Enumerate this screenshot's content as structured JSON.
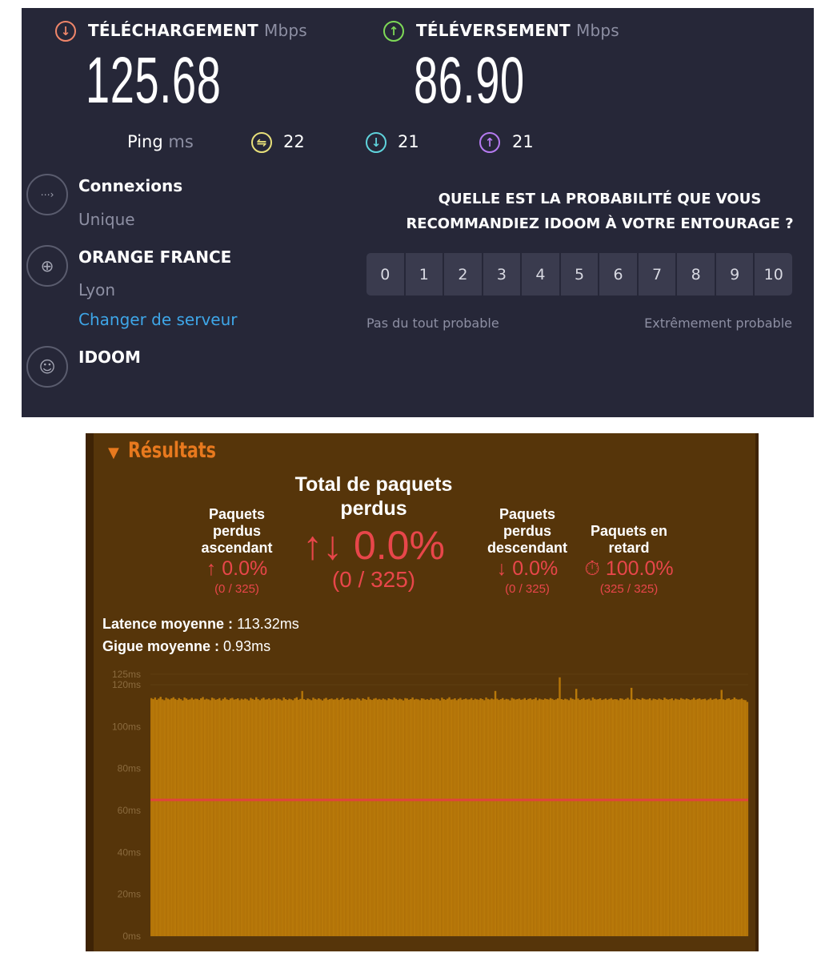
{
  "speedtest": {
    "download": {
      "label": "TÉLÉCHARGEMENT",
      "unit": "Mbps",
      "value": "125.68",
      "icon": "download-arrow-icon",
      "color": "#f0866a"
    },
    "upload": {
      "label": "TÉLÉVERSEMENT",
      "unit": "Mbps",
      "value": "86.90",
      "icon": "upload-arrow-icon",
      "color": "#7ed957"
    },
    "ping": {
      "label": "Ping",
      "unit": "ms",
      "idle": "22",
      "down": "21",
      "up": "21",
      "colors": {
        "idle": "#e8e07a",
        "down": "#5fd3dc",
        "up": "#b57af0"
      }
    },
    "connections": {
      "title": "Connexions",
      "value": "Unique"
    },
    "server": {
      "title": "ORANGE FRANCE",
      "location": "Lyon",
      "change_link": "Changer de serveur"
    },
    "provider": {
      "title": "IDOOM"
    },
    "survey": {
      "line1": "QUELLE EST LA PROBABILITÉ QUE VOUS",
      "line2": "RECOMMANDIEZ IDOOM À VOTRE ENTOURAGE ?",
      "options": [
        "0",
        "1",
        "2",
        "3",
        "4",
        "5",
        "6",
        "7",
        "8",
        "9",
        "10"
      ],
      "low_label": "Pas du tout probable",
      "high_label": "Extrêmement probable"
    }
  },
  "results": {
    "title": "Résultats",
    "upstream": {
      "label_lines": [
        "Paquets",
        "perdus",
        "ascendant"
      ],
      "value": "↑ 0.0%",
      "count": "(0 / 325)"
    },
    "total": {
      "label_lines": [
        "Total de paquets",
        "perdus"
      ],
      "value": "↑↓ 0.0%",
      "count": "(0 / 325)"
    },
    "downstream": {
      "label_lines": [
        "Paquets",
        "perdus",
        "descendant"
      ],
      "value": "↓ 0.0%",
      "count": "(0 / 325)"
    },
    "late": {
      "label_lines": [
        "Paquets en",
        "retard"
      ],
      "value": "⏱ 100.0%",
      "count": "(325 / 325)"
    },
    "avg_latency_label": "Latence moyenne :",
    "avg_latency": "113.32ms",
    "avg_jitter_label": "Gigue moyenne :",
    "avg_jitter": "0.93ms"
  },
  "chart_data": {
    "type": "bar",
    "ylim": [
      0,
      125
    ],
    "unit": "ms",
    "yticks": [
      "0ms",
      "20ms",
      "40ms",
      "60ms",
      "80ms",
      "100ms",
      "120ms",
      "125ms"
    ],
    "ytick_values": [
      0,
      20,
      40,
      60,
      80,
      100,
      120,
      125
    ],
    "threshold": 65,
    "bar_color": "#b8790a",
    "threshold_color": "#e0443c",
    "values": [
      113.6,
      113.1,
      113.9,
      112.8,
      113.4,
      114.2,
      113.0,
      112.6,
      113.8,
      113.3,
      112.9,
      113.5,
      114.0,
      113.2,
      112.7,
      113.6,
      113.1,
      112.5,
      113.9,
      113.4,
      112.8,
      113.0,
      113.7,
      112.9,
      113.3,
      113.2,
      112.7,
      113.5,
      114.1,
      112.9,
      113.3,
      113.0,
      112.6,
      113.8,
      113.4,
      112.8,
      113.1,
      113.6,
      112.5,
      113.2,
      113.9,
      113.0,
      112.7,
      113.4,
      113.7,
      112.9,
      113.1,
      113.5,
      112.6,
      113.3,
      112.9,
      113.4,
      113.0,
      112.5,
      113.7,
      113.2,
      112.8,
      114.0,
      113.1,
      112.6,
      113.3,
      113.8,
      112.9,
      113.0,
      113.5,
      112.7,
      113.2,
      113.6,
      112.8,
      113.4,
      113.0,
      112.5,
      113.9,
      113.1,
      112.7,
      113.3,
      113.0,
      112.6,
      113.5,
      114.0,
      112.8,
      113.2,
      117.0,
      113.1,
      112.7,
      113.4,
      113.0,
      112.6,
      113.8,
      113.2,
      112.9,
      113.5,
      113.0,
      112.5,
      113.3,
      113.7,
      112.8,
      113.1,
      113.4,
      112.9,
      113.0,
      113.6,
      112.7,
      113.2,
      113.9,
      112.8,
      113.1,
      113.4,
      112.6,
      113.3,
      113.0,
      112.9,
      113.7,
      113.2,
      112.5,
      113.5,
      113.1,
      112.8,
      114.1,
      113.0,
      112.7,
      113.3,
      113.6,
      112.9,
      113.2,
      112.8,
      113.4,
      113.0,
      112.6,
      113.5,
      113.1,
      112.9,
      113.8,
      113.2,
      112.7,
      113.3,
      113.0,
      112.5,
      113.6,
      113.4,
      112.8,
      113.1,
      113.9,
      112.9,
      113.2,
      113.0,
      112.6,
      113.5,
      113.3,
      112.8,
      113.1,
      112.7,
      113.6,
      113.0,
      112.9,
      113.4,
      113.2,
      112.5,
      113.8,
      113.1,
      112.8,
      113.3,
      114.0,
      112.9,
      113.0,
      113.5,
      112.6,
      113.2,
      113.7,
      112.8,
      113.1,
      113.4,
      112.9,
      113.0,
      113.6,
      112.7,
      113.3,
      113.0,
      112.8,
      113.5,
      113.1,
      112.6,
      113.9,
      113.2,
      112.9,
      113.4,
      113.0,
      117.0,
      113.3,
      112.7,
      113.1,
      113.6,
      112.8,
      113.2,
      113.0,
      112.5,
      113.7,
      113.3,
      112.9,
      113.1,
      113.4,
      112.8,
      113.0,
      113.6,
      112.7,
      113.2,
      113.5,
      112.9,
      113.1,
      113.8,
      112.6,
      113.3,
      113.0,
      112.8,
      113.4,
      113.1,
      112.9,
      113.6,
      113.2,
      112.7,
      113.0,
      113.5,
      123.5,
      113.1,
      112.8,
      113.3,
      113.0,
      112.6,
      113.7,
      113.2,
      112.9,
      118.0,
      113.4,
      112.7,
      113.1,
      113.6,
      112.8,
      113.0,
      113.3,
      112.5,
      113.9,
      113.2,
      112.9,
      113.1,
      113.5,
      112.7,
      113.0,
      113.4,
      112.8,
      113.2,
      113.6,
      112.9,
      113.1,
      113.0,
      112.6,
      113.5,
      113.3,
      112.8,
      113.2,
      113.7,
      112.9,
      118.5,
      113.0,
      112.7,
      113.4,
      113.1,
      112.8,
      113.6,
      113.2,
      112.9,
      113.0,
      113.5,
      112.6,
      113.3,
      113.1,
      112.8,
      113.4,
      113.0,
      112.7,
      113.8,
      113.2,
      112.9,
      113.1,
      113.5,
      112.6,
      113.3,
      113.0,
      112.8,
      113.6,
      113.2,
      112.9,
      113.4,
      113.1,
      112.7,
      113.0,
      113.7,
      112.8,
      113.2,
      113.5,
      112.9,
      113.1,
      113.3,
      112.6,
      113.0,
      113.6,
      112.8,
      113.2,
      113.4,
      112.9,
      113.1,
      117.5,
      113.0,
      112.7,
      113.3,
      113.5,
      112.8,
      113.1,
      113.9,
      113.2,
      112.9,
      113.0,
      113.4,
      112.8,
      112.6,
      111.8
    ]
  }
}
